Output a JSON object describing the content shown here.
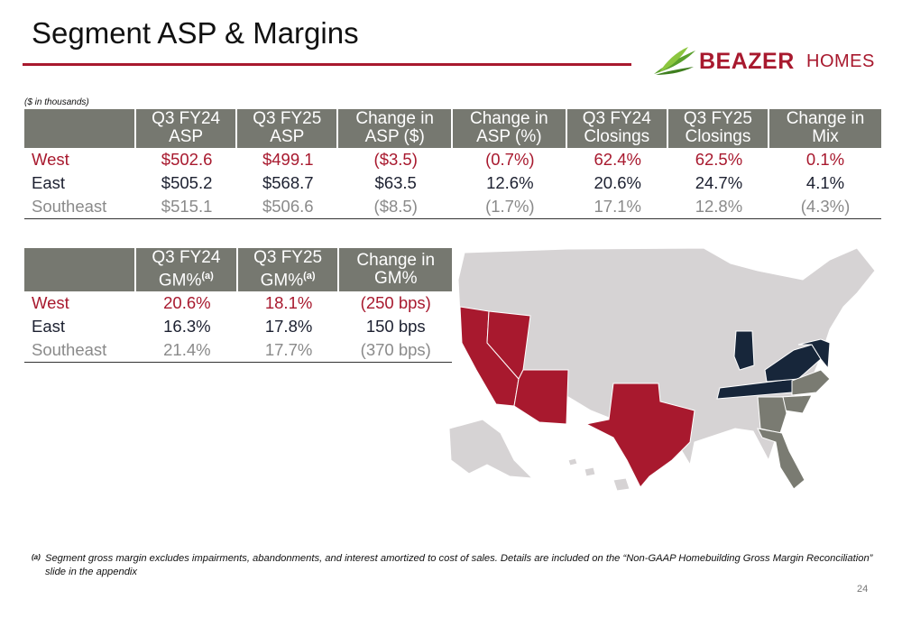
{
  "title": "Segment ASP & Margins",
  "logo": {
    "brand": "BEAZER",
    "brand_suffix": "HOMES"
  },
  "units_note": "($ in thousands)",
  "asp_table": {
    "headers": [
      "Q3 FY24 ASP",
      "Q3 FY25 ASP",
      "Change in ASP ($)",
      "Change in ASP (%)",
      "Q3 FY24 Closings",
      "Q3 FY25 Closings",
      "Change in Mix"
    ],
    "header_lines": [
      [
        "Q3 FY24",
        "ASP"
      ],
      [
        "Q3 FY25",
        "ASP"
      ],
      [
        "Change in",
        "ASP ($)"
      ],
      [
        "Change in",
        "ASP (%)"
      ],
      [
        "Q3 FY24",
        "Closings"
      ],
      [
        "Q3 FY25",
        "Closings"
      ],
      [
        "Change in",
        "Mix"
      ]
    ],
    "rows": [
      {
        "segment": "West",
        "cells": [
          "$502.6",
          "$499.1",
          "($3.5)",
          "(0.7%)",
          "62.4%",
          "62.5%",
          "0.1%"
        ]
      },
      {
        "segment": "East",
        "cells": [
          "$505.2",
          "$568.7",
          "$63.5",
          "12.6%",
          "20.6%",
          "24.7%",
          "4.1%"
        ]
      },
      {
        "segment": "Southeast",
        "cells": [
          "$515.1",
          "$506.6",
          "($8.5)",
          "(1.7%)",
          "17.1%",
          "12.8%",
          "(4.3%)"
        ]
      }
    ]
  },
  "gm_table": {
    "header_lines": [
      [
        "Q3 FY24",
        "GM%",
        "(a)"
      ],
      [
        "Q3 FY25",
        "GM%",
        "(a)"
      ],
      [
        "Change in",
        "GM%",
        ""
      ]
    ],
    "rows": [
      {
        "segment": "West",
        "cells": [
          "20.6%",
          "18.1%",
          "(250 bps)"
        ]
      },
      {
        "segment": "East",
        "cells": [
          "16.3%",
          "17.8%",
          "150 bps"
        ]
      },
      {
        "segment": "Southeast",
        "cells": [
          "21.4%",
          "17.7%",
          "(370 bps)"
        ]
      }
    ]
  },
  "map": {
    "colors": {
      "west": "#a8192e",
      "east": "#17263a",
      "southeast": "#7a7b72",
      "other": "#d6d3d4"
    },
    "west_states": [
      "California",
      "Nevada",
      "Arizona",
      "Texas"
    ],
    "east_states": [
      "Indiana",
      "Tennessee",
      "Virginia",
      "Maryland",
      "Delaware"
    ],
    "southeast_states": [
      "North Carolina",
      "South Carolina",
      "Georgia",
      "Florida"
    ]
  },
  "footnote": {
    "mark": "(a)",
    "text": "Segment gross margin excludes impairments, abandonments, and interest amortized to cost of sales. Details are included on the “Non-GAAP Homebuilding Gross Margin Reconciliation” slide in the appendix"
  },
  "page_number": "24"
}
